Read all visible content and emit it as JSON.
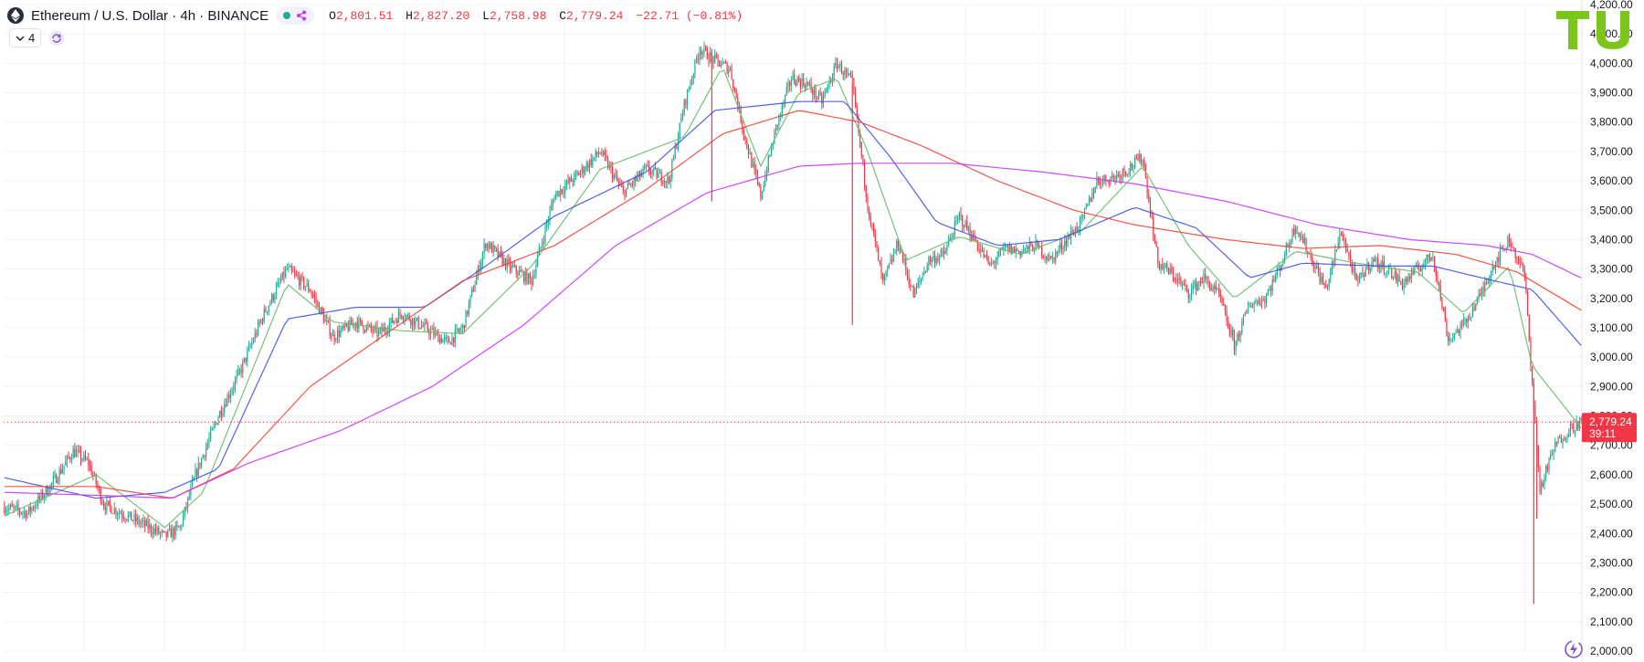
{
  "header": {
    "title": "Ethereum / U.S. Dollar · 4h · BINANCE",
    "ohlc": {
      "o_label": "O",
      "o": "2,801.51",
      "h_label": "H",
      "h": "2,827.20",
      "l_label": "L",
      "l": "2,758.98",
      "c_label": "C",
      "c": "2,779.24",
      "change": "−22.71 (−0.81%)"
    },
    "indicator_count": "4"
  },
  "price_tag": {
    "price": "2,779.24",
    "countdown": "39:11"
  },
  "colors": {
    "up": "#22ab94",
    "down": "#f23645",
    "ma_green": "#66bb6a",
    "ma_blue": "#3f51e5",
    "ma_red": "#f44336",
    "ma_purple": "#cc33ff",
    "logo": "#7cc61b"
  },
  "icons": [
    "ethereum-coin-icon",
    "eye-icon",
    "share-icon",
    "chevron-down-icon",
    "refresh-icon",
    "tu-logo-icon",
    "flash-icon"
  ],
  "chart_data": {
    "type": "candlestick",
    "ylim": [
      2000,
      4200
    ],
    "yticks": [
      "2,000.00",
      "2,100.00",
      "2,200.00",
      "2,300.00",
      "2,400.00",
      "2,500.00",
      "2,600.00",
      "2,700.00",
      "2,800.00",
      "2,900.00",
      "3,000.00",
      "3,100.00",
      "3,200.00",
      "3,300.00",
      "3,400.00",
      "3,500.00",
      "3,600.00",
      "3,700.00",
      "3,800.00",
      "3,900.00",
      "4,000.00",
      "4,100.00",
      "4,200.00"
    ],
    "current_price": 2779.24,
    "anchors": [
      [
        0,
        2490
      ],
      [
        15,
        2470
      ],
      [
        30,
        2560
      ],
      [
        45,
        2680
      ],
      [
        55,
        2640
      ],
      [
        65,
        2500
      ],
      [
        80,
        2460
      ],
      [
        95,
        2420
      ],
      [
        105,
        2390
      ],
      [
        115,
        2420
      ],
      [
        125,
        2600
      ],
      [
        140,
        2800
      ],
      [
        155,
        2960
      ],
      [
        170,
        3150
      ],
      [
        185,
        3300
      ],
      [
        200,
        3230
      ],
      [
        215,
        3070
      ],
      [
        230,
        3120
      ],
      [
        245,
        3080
      ],
      [
        260,
        3150
      ],
      [
        275,
        3100
      ],
      [
        290,
        3050
      ],
      [
        300,
        3100
      ],
      [
        315,
        3390
      ],
      [
        330,
        3310
      ],
      [
        345,
        3260
      ],
      [
        360,
        3550
      ],
      [
        375,
        3620
      ],
      [
        390,
        3700
      ],
      [
        405,
        3560
      ],
      [
        420,
        3640
      ],
      [
        435,
        3600
      ],
      [
        445,
        3860
      ],
      [
        455,
        4050
      ],
      [
        465,
        4010
      ],
      [
        475,
        3980
      ],
      [
        485,
        3740
      ],
      [
        495,
        3550
      ],
      [
        505,
        3780
      ],
      [
        515,
        3950
      ],
      [
        525,
        3930
      ],
      [
        535,
        3870
      ],
      [
        545,
        4000
      ],
      [
        555,
        3930
      ],
      [
        565,
        3520
      ],
      [
        575,
        3250
      ],
      [
        585,
        3390
      ],
      [
        595,
        3210
      ],
      [
        605,
        3330
      ],
      [
        615,
        3350
      ],
      [
        625,
        3480
      ],
      [
        635,
        3400
      ],
      [
        645,
        3310
      ],
      [
        655,
        3370
      ],
      [
        665,
        3360
      ],
      [
        675,
        3380
      ],
      [
        685,
        3330
      ],
      [
        695,
        3400
      ],
      [
        705,
        3460
      ],
      [
        715,
        3600
      ],
      [
        725,
        3610
      ],
      [
        735,
        3640
      ],
      [
        745,
        3680
      ],
      [
        755,
        3320
      ],
      [
        765,
        3280
      ],
      [
        775,
        3220
      ],
      [
        785,
        3270
      ],
      [
        795,
        3210
      ],
      [
        805,
        3040
      ],
      [
        815,
        3180
      ],
      [
        825,
        3200
      ],
      [
        835,
        3310
      ],
      [
        845,
        3450
      ],
      [
        855,
        3340
      ],
      [
        865,
        3230
      ],
      [
        875,
        3430
      ],
      [
        885,
        3250
      ],
      [
        895,
        3330
      ],
      [
        905,
        3300
      ],
      [
        915,
        3250
      ],
      [
        925,
        3300
      ],
      [
        935,
        3350
      ],
      [
        945,
        3060
      ],
      [
        955,
        3110
      ],
      [
        965,
        3200
      ],
      [
        975,
        3320
      ],
      [
        985,
        3400
      ],
      [
        995,
        3280
      ],
      [
        1005,
        2550
      ],
      [
        1015,
        2700
      ],
      [
        1025,
        2760
      ],
      [
        1032,
        2779
      ]
    ],
    "series": [
      {
        "name": "",
        "color": "#66bb6a",
        "values": [
          [
            0,
            2460
          ],
          [
            60,
            2600
          ],
          [
            105,
            2420
          ],
          [
            130,
            2540
          ],
          [
            185,
            3250
          ],
          [
            215,
            3120
          ],
          [
            260,
            3090
          ],
          [
            300,
            3080
          ],
          [
            345,
            3310
          ],
          [
            390,
            3640
          ],
          [
            445,
            3750
          ],
          [
            470,
            3990
          ],
          [
            495,
            3650
          ],
          [
            520,
            3900
          ],
          [
            545,
            3950
          ],
          [
            565,
            3700
          ],
          [
            590,
            3330
          ],
          [
            625,
            3410
          ],
          [
            665,
            3350
          ],
          [
            705,
            3430
          ],
          [
            745,
            3650
          ],
          [
            775,
            3380
          ],
          [
            805,
            3200
          ],
          [
            845,
            3360
          ],
          [
            885,
            3320
          ],
          [
            925,
            3290
          ],
          [
            955,
            3150
          ],
          [
            985,
            3310
          ],
          [
            1000,
            2970
          ],
          [
            1032,
            2760
          ]
        ]
      },
      {
        "name": "",
        "color": "#3f51e5",
        "values": [
          [
            0,
            2590
          ],
          [
            60,
            2520
          ],
          [
            105,
            2540
          ],
          [
            140,
            2620
          ],
          [
            185,
            3130
          ],
          [
            230,
            3170
          ],
          [
            275,
            3170
          ],
          [
            315,
            3310
          ],
          [
            360,
            3480
          ],
          [
            420,
            3630
          ],
          [
            465,
            3840
          ],
          [
            520,
            3870
          ],
          [
            550,
            3870
          ],
          [
            580,
            3680
          ],
          [
            610,
            3460
          ],
          [
            650,
            3380
          ],
          [
            690,
            3400
          ],
          [
            740,
            3510
          ],
          [
            780,
            3440
          ],
          [
            815,
            3270
          ],
          [
            850,
            3320
          ],
          [
            900,
            3310
          ],
          [
            935,
            3310
          ],
          [
            975,
            3260
          ],
          [
            1000,
            3230
          ],
          [
            1032,
            3040
          ]
        ]
      },
      {
        "name": "",
        "color": "#f44336",
        "values": [
          [
            0,
            2560
          ],
          [
            60,
            2560
          ],
          [
            110,
            2520
          ],
          [
            150,
            2620
          ],
          [
            200,
            2900
          ],
          [
            250,
            3080
          ],
          [
            300,
            3260
          ],
          [
            360,
            3380
          ],
          [
            420,
            3570
          ],
          [
            470,
            3760
          ],
          [
            520,
            3840
          ],
          [
            560,
            3800
          ],
          [
            600,
            3720
          ],
          [
            650,
            3600
          ],
          [
            700,
            3500
          ],
          [
            740,
            3450
          ],
          [
            800,
            3400
          ],
          [
            850,
            3370
          ],
          [
            900,
            3380
          ],
          [
            950,
            3350
          ],
          [
            990,
            3290
          ],
          [
            1032,
            3160
          ]
        ]
      },
      {
        "name": "",
        "color": "#cc33ff",
        "values": [
          [
            0,
            2540
          ],
          [
            60,
            2530
          ],
          [
            110,
            2520
          ],
          [
            160,
            2640
          ],
          [
            220,
            2750
          ],
          [
            280,
            2900
          ],
          [
            340,
            3110
          ],
          [
            400,
            3380
          ],
          [
            460,
            3560
          ],
          [
            520,
            3650
          ],
          [
            560,
            3660
          ],
          [
            620,
            3660
          ],
          [
            680,
            3630
          ],
          [
            740,
            3590
          ],
          [
            800,
            3530
          ],
          [
            860,
            3450
          ],
          [
            920,
            3400
          ],
          [
            970,
            3380
          ],
          [
            1000,
            3350
          ],
          [
            1032,
            3270
          ]
        ]
      }
    ]
  }
}
